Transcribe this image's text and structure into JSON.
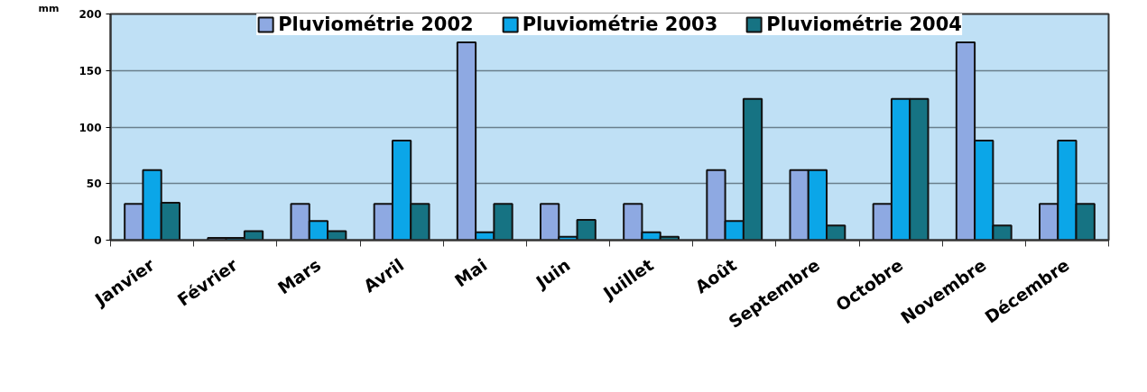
{
  "chart_data": {
    "type": "bar",
    "ylabel": "mm",
    "categories": [
      "Janvier",
      "Février",
      "Mars",
      "Avril",
      "Mai",
      "Juin",
      "Juillet",
      "Août",
      "Septembre",
      "Octobre",
      "Novembre",
      "Décembre"
    ],
    "series": [
      {
        "name": "Pluviométrie 2002",
        "color": "#8ea9e2",
        "values": [
          32,
          2,
          32,
          32,
          175,
          32,
          32,
          62,
          62,
          32,
          175,
          32
        ]
      },
      {
        "name": "Pluviométrie 2003",
        "color": "#0ba6e8",
        "values": [
          62,
          2,
          17,
          88,
          7,
          3,
          7,
          17,
          62,
          125,
          88,
          88
        ]
      },
      {
        "name": "Pluviométrie 2004",
        "color": "#167383",
        "values": [
          33,
          8,
          8,
          32,
          32,
          18,
          3,
          125,
          13,
          125,
          13,
          32
        ]
      }
    ],
    "ylim": [
      0,
      200
    ],
    "yticks": [
      0,
      50,
      100,
      150,
      200
    ],
    "grid": "y",
    "legend": "top"
  }
}
